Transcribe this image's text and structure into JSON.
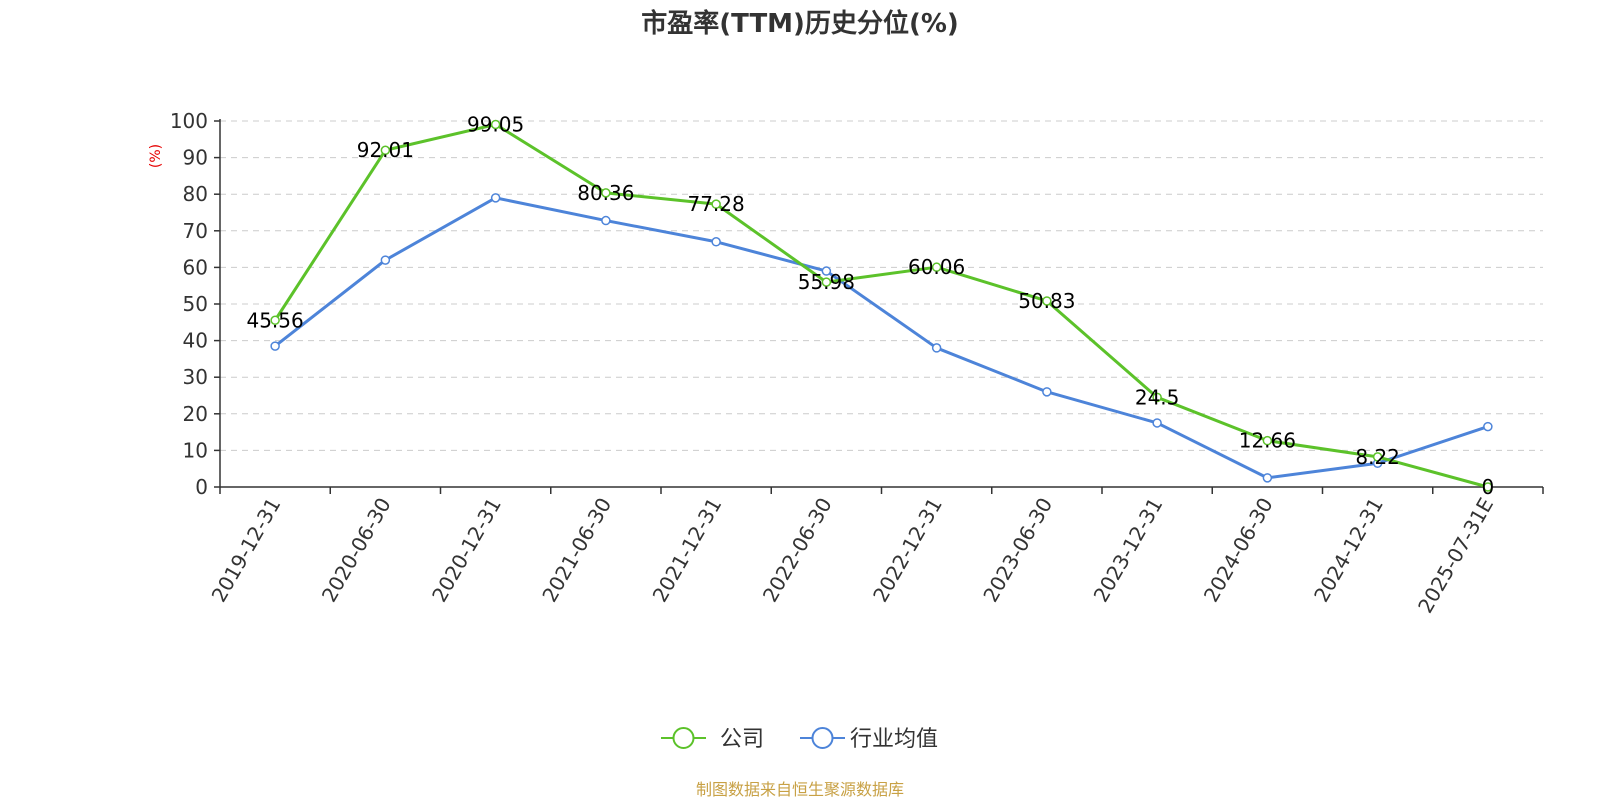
{
  "chart_data": {
    "type": "line",
    "title": "市盈率(TTM)历史分位(%)",
    "ylabel": "(%)",
    "xlabel": "",
    "ylim": [
      0,
      100
    ],
    "yticks": [
      "0",
      "10",
      "20",
      "30",
      "40",
      "50",
      "60",
      "70",
      "80",
      "90",
      "100"
    ],
    "categories": [
      "2019-12-31",
      "2020-06-30",
      "2020-12-31",
      "2021-06-30",
      "2021-12-31",
      "2022-06-30",
      "2022-12-31",
      "2023-06-30",
      "2023-12-31",
      "2024-06-30",
      "2024-12-31",
      "2025-07-31E"
    ],
    "series": [
      {
        "name": "公司",
        "color": "#5cc22a",
        "values": [
          45.56,
          92.01,
          99.05,
          80.36,
          77.28,
          55.98,
          60.06,
          50.83,
          24.5,
          12.66,
          8.22,
          0
        ],
        "labels": [
          "45.56",
          "92.01",
          "99.05",
          "80.36",
          "77.28",
          "55.98",
          "60.06",
          "50.83",
          "24.5",
          "12.66",
          "8.22",
          "0"
        ]
      },
      {
        "name": "行业均值",
        "color": "#4d84d9",
        "values": [
          38.5,
          62,
          79,
          72.8,
          67,
          59,
          38,
          26,
          17.5,
          2.5,
          6.5,
          16.5
        ]
      }
    ],
    "grid": true,
    "legend_position": "bottom-center"
  },
  "source": "制图数据来自恒生聚源数据库"
}
